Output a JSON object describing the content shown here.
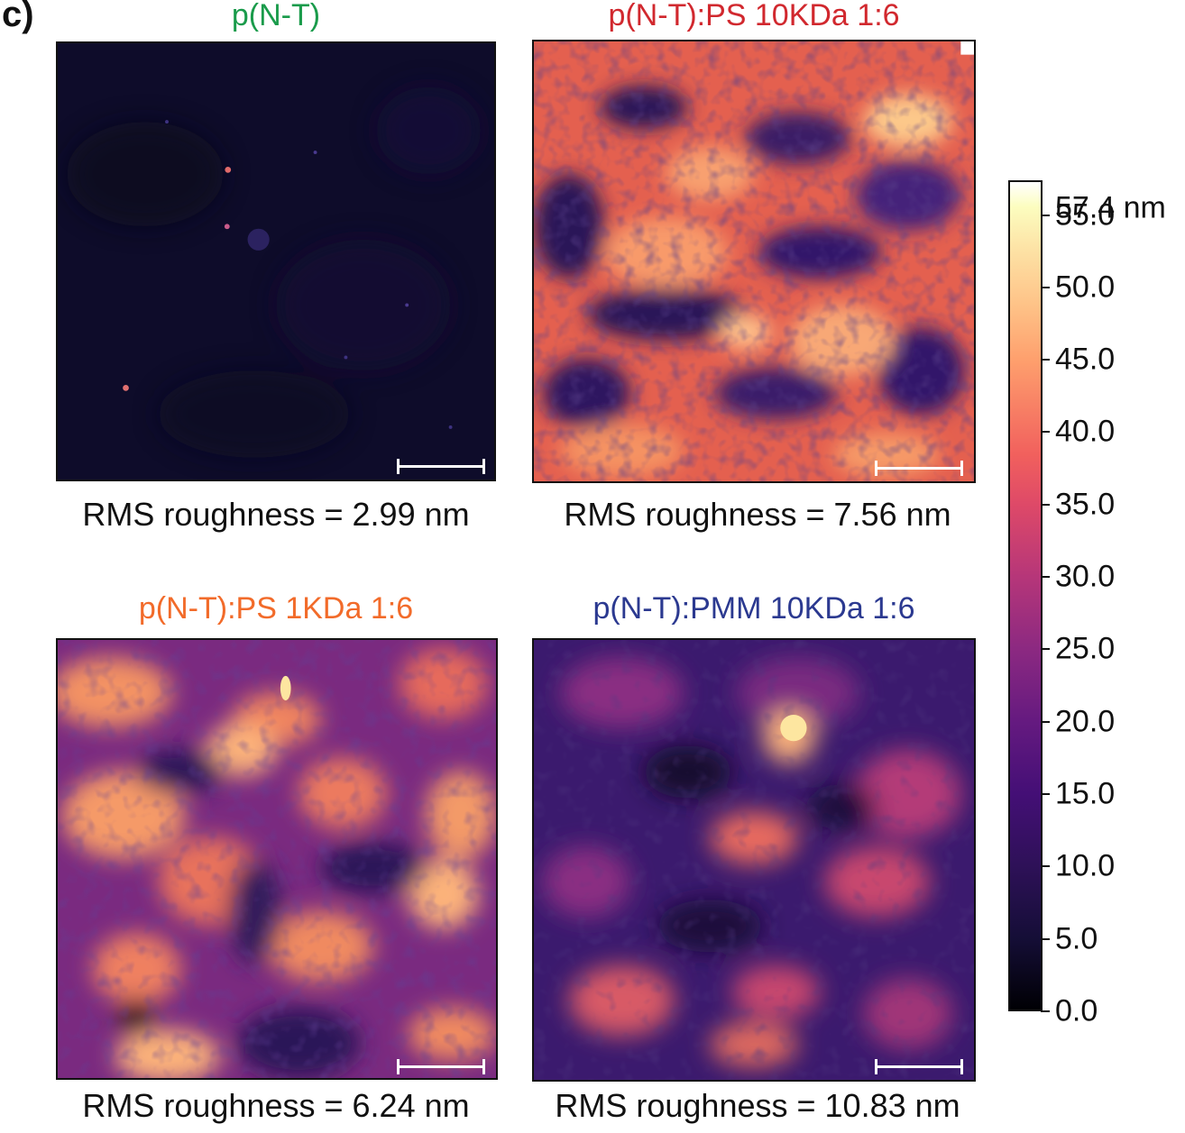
{
  "panel_label": "c)",
  "panels": [
    {
      "title": "p(N-T)",
      "title_color": "#1a9b4b",
      "caption": "RMS roughness = 2.99 nm",
      "rms_nm": 2.99
    },
    {
      "title": "p(N-T):PS 10KDa 1:6",
      "title_color": "#d1282e",
      "caption": "RMS roughness = 7.56 nm",
      "rms_nm": 7.56
    },
    {
      "title": "p(N-T):PS 1KDa 1:6",
      "title_color": "#f26b2a",
      "caption": "RMS roughness = 6.24 nm",
      "rms_nm": 6.24
    },
    {
      "title": "p(N-T):PMM 10KDa 1:6",
      "title_color": "#2b3990",
      "caption": "RMS roughness = 10.83 nm",
      "rms_nm": 10.83
    }
  ],
  "colorbar": {
    "max_label": "57.4 nm",
    "max_value": 57.4,
    "ticks": [
      "55.0",
      "50.0",
      "45.0",
      "40.0",
      "35.0",
      "30.0",
      "25.0",
      "20.0",
      "15.0",
      "10.0",
      "5.0",
      "0.0"
    ],
    "tick_values": [
      55,
      50,
      45,
      40,
      35,
      30,
      25,
      20,
      15,
      10,
      5,
      0
    ],
    "colormap": "inferno"
  }
}
